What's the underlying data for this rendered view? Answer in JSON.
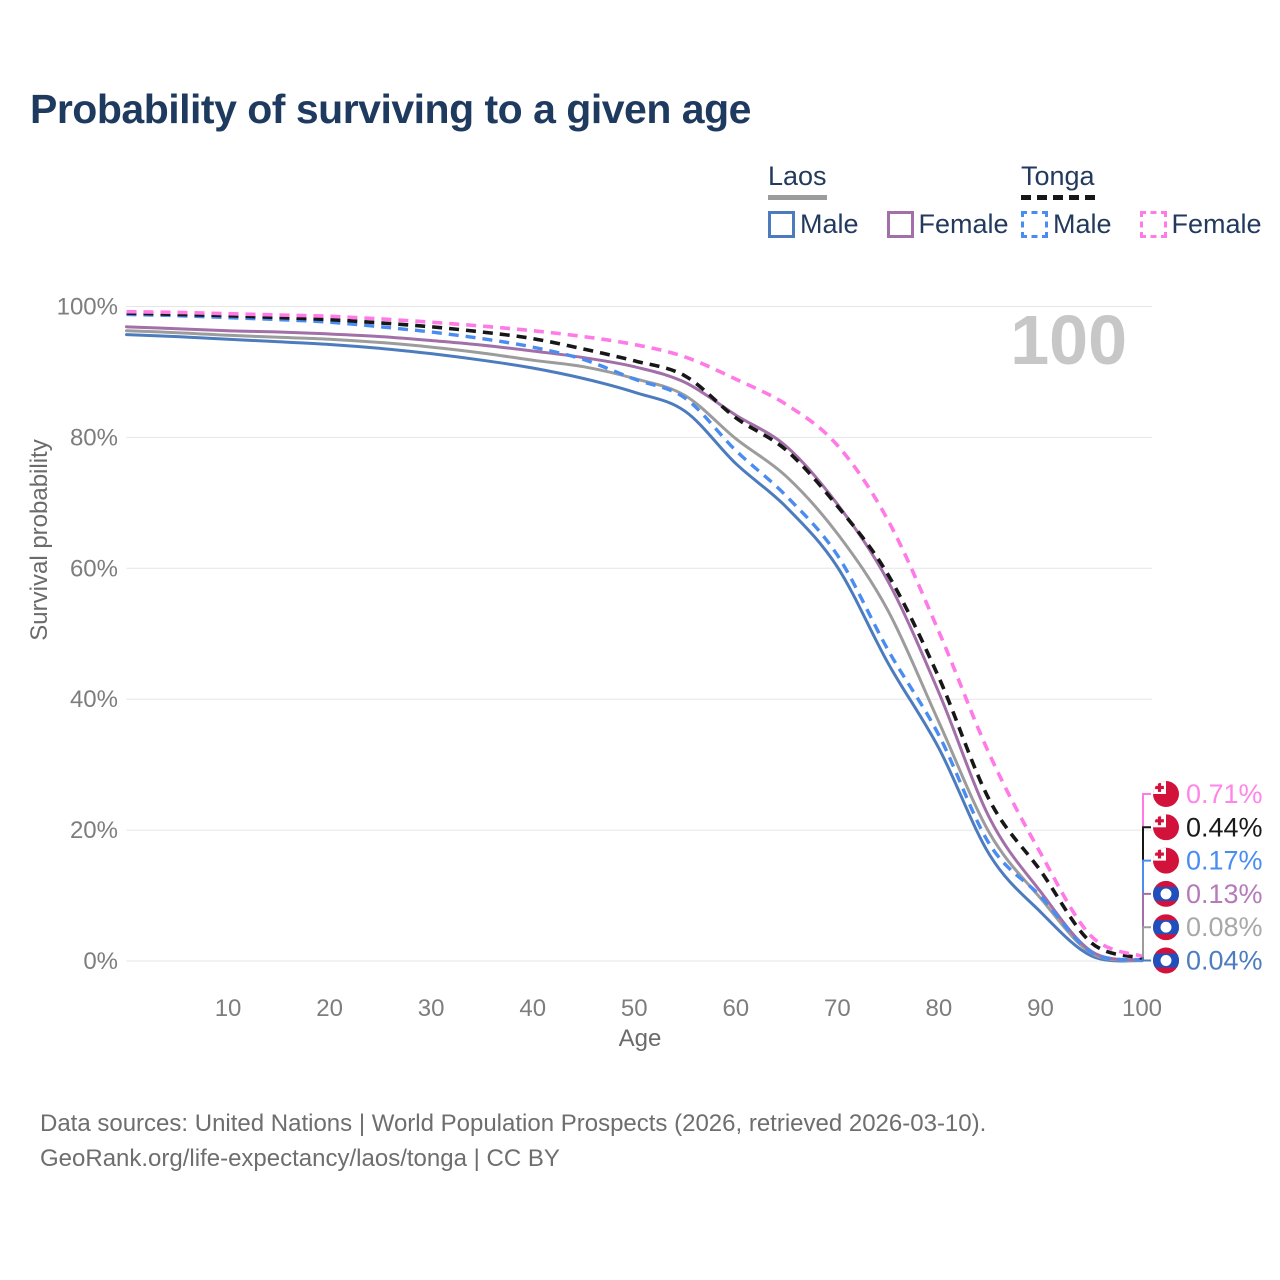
{
  "title": {
    "text": "Probability of surviving to a given age"
  },
  "watermark": {
    "text": "100"
  },
  "legend": {
    "groups": [
      {
        "name": "Laos",
        "line_style": "solid",
        "underline_color": "#9c9c9c",
        "items": [
          {
            "label": "Male",
            "color": "#4d7cbe",
            "style": "solid"
          },
          {
            "label": "Female",
            "color": "#a26fa8",
            "style": "solid"
          }
        ]
      },
      {
        "name": "Tonga",
        "line_style": "dashed",
        "underline_color": "#171717",
        "items": [
          {
            "label": "Male",
            "color": "#4a8cf0",
            "style": "dashed"
          },
          {
            "label": "Female",
            "color": "#ff79e7",
            "style": "dashed"
          }
        ]
      }
    ]
  },
  "chart_data": {
    "type": "line",
    "title": "Probability of surviving to a given age",
    "xlabel": "Age",
    "ylabel": "Survival probability",
    "xlim": [
      0,
      100
    ],
    "ylim": [
      0,
      100
    ],
    "grid": "horizontal-only",
    "gridline_color": "#e6e6e6",
    "x_ticks": [
      10,
      20,
      30,
      40,
      50,
      60,
      70,
      80,
      90,
      100
    ],
    "y_ticks": [
      {
        "value": 0,
        "label": "0%"
      },
      {
        "value": 20,
        "label": "20%"
      },
      {
        "value": 40,
        "label": "40%"
      },
      {
        "value": 60,
        "label": "60%"
      },
      {
        "value": 80,
        "label": "80%"
      },
      {
        "value": 100,
        "label": "100%"
      }
    ],
    "x": [
      0,
      5,
      10,
      15,
      20,
      25,
      30,
      35,
      40,
      45,
      50,
      55,
      60,
      65,
      70,
      75,
      80,
      85,
      90,
      95,
      100
    ],
    "series": [
      {
        "name": "Laos Male",
        "country": "Laos",
        "sex": "Male",
        "color": "#4d7cbe",
        "dash": "solid",
        "width": 3,
        "values": [
          95.7,
          95.4,
          95.0,
          94.6,
          94.2,
          93.6,
          92.8,
          91.8,
          90.6,
          89.0,
          86.9,
          84.0,
          76.0,
          69.3,
          60.2,
          45.5,
          32.5,
          16.2,
          7.5,
          0.8,
          0.04
        ],
        "end_label": "0.04%",
        "end_label_color": "#4c7dc0",
        "flag": "laos"
      },
      {
        "name": "Laos Both sexes",
        "country": "Laos",
        "sex": "Both",
        "color": "#9c9c9c",
        "dash": "solid",
        "width": 3,
        "values": [
          96.3,
          96.0,
          95.6,
          95.3,
          95.0,
          94.5,
          93.8,
          92.9,
          91.8,
          90.8,
          89.0,
          86.4,
          79.8,
          74.0,
          65.3,
          53.5,
          36.5,
          19.5,
          9.6,
          1.2,
          0.08
        ],
        "end_label": "0.08%",
        "end_label_color": "#a8a8a8",
        "flag": "laos"
      },
      {
        "name": "Laos Female",
        "country": "Laos",
        "sex": "Female",
        "color": "#a26fa8",
        "dash": "solid",
        "width": 3,
        "values": [
          96.9,
          96.6,
          96.3,
          96.1,
          95.8,
          95.4,
          94.8,
          94.1,
          93.2,
          92.2,
          90.8,
          88.4,
          83.4,
          78.6,
          69.8,
          58.0,
          41.0,
          21.8,
          10.6,
          1.5,
          0.13
        ],
        "end_label": "0.13%",
        "end_label_color": "#b57ab8",
        "flag": "laos"
      },
      {
        "name": "Tonga Male",
        "country": "Tonga",
        "sex": "Male",
        "color": "#4a8cf0",
        "dash": "dashed",
        "width": 3.4,
        "values": [
          98.8,
          98.6,
          98.3,
          98.0,
          97.6,
          96.9,
          96.1,
          95.1,
          93.8,
          91.9,
          88.9,
          86.0,
          78.0,
          71.0,
          62.0,
          47.5,
          34.5,
          17.8,
          9.9,
          1.35,
          0.17
        ],
        "end_label": "0.17%",
        "end_label_color": "#4a8df2",
        "flag": "tonga"
      },
      {
        "name": "Tonga Both sexes",
        "country": "Tonga",
        "sex": "Both",
        "color": "#171717",
        "dash": "dashed",
        "width": 3.6,
        "values": [
          99.0,
          98.8,
          98.6,
          98.3,
          98.0,
          97.5,
          96.9,
          96.1,
          95.1,
          93.5,
          91.7,
          89.4,
          83.0,
          78.0,
          69.5,
          59.0,
          43.3,
          24.5,
          13.8,
          2.8,
          0.44
        ],
        "end_label": "0.44%",
        "end_label_color": "#1a1a1a",
        "flag": "tonga"
      },
      {
        "name": "Tonga Female",
        "country": "Tonga",
        "sex": "Female",
        "color": "#ff79e7",
        "dash": "dashed",
        "width": 3.6,
        "values": [
          99.2,
          99.1,
          98.9,
          98.7,
          98.5,
          98.1,
          97.6,
          97.0,
          96.3,
          95.4,
          94.2,
          92.3,
          88.9,
          85.0,
          78.8,
          67.3,
          50.3,
          31.5,
          16.5,
          3.8,
          0.71
        ],
        "end_label": "0.71%",
        "end_label_color": "#ff85e6",
        "flag": "tonga"
      }
    ],
    "flag_colors": {
      "red": "#d2123a",
      "laos_blue": "#2150bd",
      "white": "#ffffff"
    }
  },
  "footer": {
    "line1": "Data sources: United Nations | World Population Prospects (2026, retrieved 2026-03-10).",
    "line2": "GeoRank.org/life-expectancy/laos/tonga | CC BY"
  }
}
